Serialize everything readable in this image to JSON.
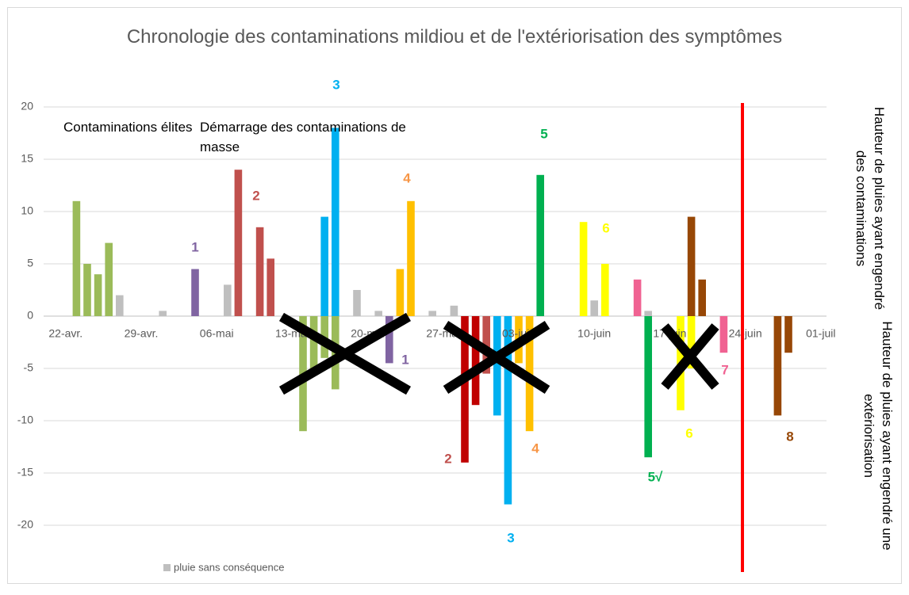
{
  "chart_data": {
    "type": "bar",
    "title": "Chronologie des contaminations mildiou et de l'extériorisation des symptômes",
    "side_labels": [
      "Hauteur de pluies ayant engendré des contaminations",
      "Hauteur de pluies ayant engendré une extériorisation"
    ],
    "notes": [
      "Contaminations élites",
      "Démarrage des contaminations de masse"
    ],
    "categories": [
      "22-avr.",
      null,
      null,
      null,
      null,
      null,
      null,
      "29-avr.",
      null,
      null,
      null,
      null,
      null,
      null,
      "06-mai",
      null,
      null,
      null,
      null,
      null,
      null,
      "13-mai",
      null,
      null,
      null,
      null,
      null,
      null,
      "20-mai",
      null,
      null,
      null,
      null,
      null,
      null,
      "27-mai",
      null,
      null,
      null,
      null,
      null,
      null,
      "03-juin",
      null,
      null,
      null,
      null,
      null,
      null,
      "10-juin",
      null,
      null,
      null,
      null,
      null,
      null,
      "17-juin",
      null,
      null,
      null,
      null,
      null,
      null,
      "24-juin",
      null,
      null,
      null,
      null,
      null,
      null,
      "01-juil"
    ],
    "series": [
      {
        "color": "#9bbb59",
        "values": [
          null,
          11,
          5,
          4,
          7,
          null,
          null,
          null,
          null,
          null,
          null,
          null,
          null,
          null,
          null,
          null,
          null,
          null,
          null,
          null,
          null,
          null,
          -11,
          -5,
          -4,
          -7,
          null,
          null,
          null,
          null,
          null,
          null,
          null,
          null,
          null,
          null,
          null,
          null,
          null,
          null,
          null,
          null,
          null,
          null,
          null,
          null,
          null,
          null,
          null,
          null,
          null,
          null,
          null,
          null,
          null,
          null,
          null,
          null,
          null,
          null,
          null,
          null,
          null,
          null,
          null,
          null,
          null,
          null,
          null,
          null,
          null
        ]
      },
      {
        "name": "pluie sans conséquence",
        "color": "#bfbfbf",
        "values": [
          null,
          null,
          null,
          null,
          null,
          2,
          null,
          null,
          null,
          0.5,
          null,
          null,
          null,
          null,
          null,
          3,
          null,
          null,
          null,
          null,
          null,
          null,
          null,
          null,
          null,
          null,
          null,
          2.5,
          null,
          0.5,
          null,
          null,
          null,
          null,
          0.5,
          null,
          1,
          null,
          null,
          null,
          null,
          null,
          null,
          null,
          null,
          null,
          null,
          null,
          null,
          1.5,
          null,
          null,
          null,
          null,
          0.5,
          null,
          null,
          null,
          null,
          null,
          null,
          null,
          null,
          null,
          null,
          null,
          null,
          null,
          null,
          null,
          null
        ]
      },
      {
        "color": "#8064a2",
        "values": [
          null,
          null,
          null,
          null,
          null,
          null,
          null,
          null,
          null,
          null,
          null,
          null,
          4.5,
          null,
          null,
          null,
          null,
          null,
          null,
          null,
          null,
          null,
          null,
          null,
          null,
          null,
          null,
          null,
          null,
          null,
          -4.5,
          null,
          null,
          null,
          null,
          null,
          null,
          null,
          null,
          null,
          null,
          null,
          null,
          null,
          null,
          null,
          null,
          null,
          null,
          null,
          null,
          null,
          null,
          null,
          null,
          null,
          null,
          null,
          null,
          null,
          null,
          null,
          null,
          null,
          null,
          null,
          null,
          null,
          null,
          null,
          null
        ]
      },
      {
        "color": "#c0504d",
        "values": [
          null,
          null,
          null,
          null,
          null,
          null,
          null,
          null,
          null,
          null,
          null,
          null,
          null,
          null,
          null,
          null,
          14,
          null,
          8.5,
          5.5,
          null,
          null,
          null,
          null,
          null,
          null,
          null,
          null,
          null,
          null,
          null,
          null,
          null,
          null,
          null,
          null,
          null,
          null,
          null,
          -5.5,
          null,
          null,
          null,
          null,
          null,
          null,
          null,
          null,
          null,
          null,
          null,
          null,
          null,
          null,
          null,
          null,
          null,
          null,
          null,
          null,
          null,
          null,
          null,
          null,
          null,
          null,
          null,
          null,
          null,
          null,
          null
        ]
      },
      {
        "color": "#c00000",
        "values": [
          null,
          null,
          null,
          null,
          null,
          null,
          null,
          null,
          null,
          null,
          null,
          null,
          null,
          null,
          null,
          null,
          null,
          null,
          null,
          null,
          null,
          null,
          null,
          null,
          null,
          null,
          null,
          null,
          null,
          null,
          null,
          null,
          null,
          null,
          null,
          null,
          null,
          -14,
          -8.5,
          null,
          null,
          null,
          null,
          null,
          null,
          null,
          null,
          null,
          null,
          null,
          null,
          null,
          null,
          null,
          null,
          null,
          null,
          null,
          null,
          null,
          null,
          null,
          null,
          null,
          null,
          null,
          null,
          null,
          null,
          null,
          null
        ]
      },
      {
        "color": "#00b0f0",
        "values": [
          null,
          null,
          null,
          null,
          null,
          null,
          null,
          null,
          null,
          null,
          null,
          null,
          null,
          null,
          null,
          null,
          null,
          null,
          null,
          null,
          null,
          null,
          null,
          null,
          9.5,
          18,
          null,
          null,
          null,
          null,
          null,
          null,
          null,
          null,
          null,
          null,
          null,
          null,
          null,
          null,
          -9.5,
          -18,
          null,
          null,
          null,
          null,
          null,
          null,
          null,
          null,
          null,
          null,
          null,
          null,
          null,
          null,
          null,
          null,
          null,
          null,
          null,
          null,
          null,
          null,
          null,
          null,
          null,
          null,
          null,
          null,
          null
        ]
      },
      {
        "color": "#ffc000",
        "values": [
          null,
          null,
          null,
          null,
          null,
          null,
          null,
          null,
          null,
          null,
          null,
          null,
          null,
          null,
          null,
          null,
          null,
          null,
          null,
          null,
          null,
          null,
          null,
          null,
          null,
          null,
          null,
          null,
          null,
          null,
          null,
          4.5,
          11,
          null,
          null,
          null,
          null,
          null,
          null,
          null,
          null,
          null,
          -4.5,
          -11,
          null,
          null,
          null,
          null,
          null,
          null,
          null,
          null,
          null,
          null,
          null,
          null,
          null,
          null,
          null,
          null,
          null,
          null,
          null,
          null,
          null,
          null,
          null,
          null,
          null,
          null,
          null
        ]
      },
      {
        "color": "#00b050",
        "values": [
          null,
          null,
          null,
          null,
          null,
          null,
          null,
          null,
          null,
          null,
          null,
          null,
          null,
          null,
          null,
          null,
          null,
          null,
          null,
          null,
          null,
          null,
          null,
          null,
          null,
          null,
          null,
          null,
          null,
          null,
          null,
          null,
          null,
          null,
          null,
          null,
          null,
          null,
          null,
          null,
          null,
          null,
          null,
          null,
          13.5,
          null,
          null,
          null,
          null,
          null,
          null,
          null,
          null,
          null,
          -13.5,
          null,
          null,
          null,
          null,
          null,
          null,
          null,
          null,
          null,
          null,
          null,
          null,
          null,
          null,
          null,
          null
        ]
      },
      {
        "color": "#ffff00",
        "values": [
          null,
          null,
          null,
          null,
          null,
          null,
          null,
          null,
          null,
          null,
          null,
          null,
          null,
          null,
          null,
          null,
          null,
          null,
          null,
          null,
          null,
          null,
          null,
          null,
          null,
          null,
          null,
          null,
          null,
          null,
          null,
          null,
          null,
          null,
          null,
          null,
          null,
          null,
          null,
          null,
          null,
          null,
          null,
          null,
          null,
          null,
          null,
          null,
          9,
          null,
          5,
          null,
          null,
          null,
          null,
          null,
          null,
          -9,
          -5,
          null,
          null,
          null,
          null,
          null,
          null,
          null,
          null,
          null,
          null,
          null,
          null
        ]
      },
      {
        "color": "#f06292",
        "values": [
          null,
          null,
          null,
          null,
          null,
          null,
          null,
          null,
          null,
          null,
          null,
          null,
          null,
          null,
          null,
          null,
          null,
          null,
          null,
          null,
          null,
          null,
          null,
          null,
          null,
          null,
          null,
          null,
          null,
          null,
          null,
          null,
          null,
          null,
          null,
          null,
          null,
          null,
          null,
          null,
          null,
          null,
          null,
          null,
          null,
          null,
          null,
          null,
          null,
          null,
          null,
          null,
          null,
          3.5,
          null,
          null,
          null,
          null,
          null,
          null,
          null,
          -3.5,
          null,
          null,
          null,
          null,
          null,
          null,
          null,
          null,
          null
        ]
      },
      {
        "color": "#974706",
        "values": [
          null,
          null,
          null,
          null,
          null,
          null,
          null,
          null,
          null,
          null,
          null,
          null,
          null,
          null,
          null,
          null,
          null,
          null,
          null,
          null,
          null,
          null,
          null,
          null,
          null,
          null,
          null,
          null,
          null,
          null,
          null,
          null,
          null,
          null,
          null,
          null,
          null,
          null,
          null,
          null,
          null,
          null,
          null,
          null,
          null,
          null,
          null,
          null,
          null,
          null,
          null,
          null,
          null,
          null,
          null,
          null,
          null,
          null,
          9.5,
          3.5,
          null,
          null,
          null,
          null,
          null,
          null,
          -9.5,
          -3.5,
          null,
          null,
          null
        ]
      }
    ],
    "annotations": [
      {
        "text": "3",
        "color": "#00b0f0"
      },
      {
        "text": "2",
        "color": "#c0504d"
      },
      {
        "text": "1",
        "color": "#8064a2"
      },
      {
        "text": "4",
        "color": "#f79646"
      },
      {
        "text": "5",
        "color": "#00b050"
      },
      {
        "text": "6",
        "color": "#ffff00"
      },
      {
        "text": "1",
        "color": "#8064a2"
      },
      {
        "text": "2",
        "color": "#c0504d"
      },
      {
        "text": "3",
        "color": "#00b0f0"
      },
      {
        "text": "4",
        "color": "#f79646"
      },
      {
        "text": "5√",
        "color": "#00b050"
      },
      {
        "text": "6",
        "color": "#ffff00"
      },
      {
        "text": "7",
        "color": "#f06292"
      },
      {
        "text": "8",
        "color": "#974706"
      }
    ],
    "ylim": [
      -25,
      20
    ],
    "yticks": [
      -20,
      -15,
      -10,
      -5,
      0,
      5,
      10,
      15,
      20
    ],
    "grid": true
  }
}
